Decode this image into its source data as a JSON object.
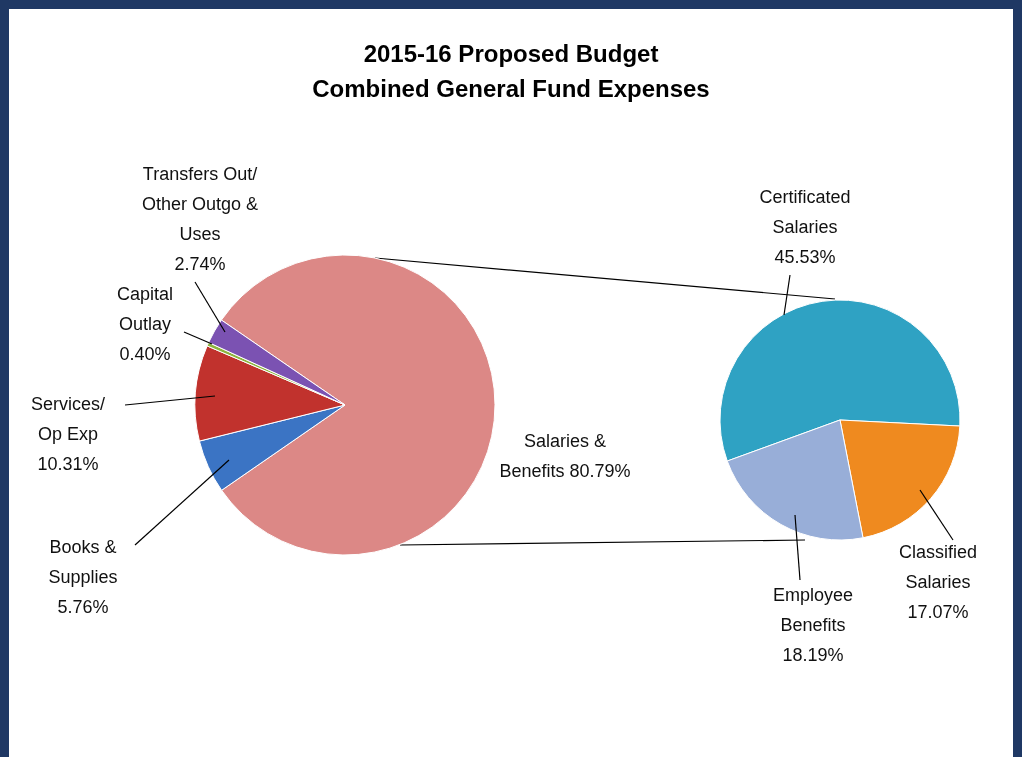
{
  "chart_data": [
    {
      "type": "pie",
      "title": "2015-16 Proposed Budget",
      "subtitle": "Combined General Fund Expenses",
      "categories": [
        "Salaries & Benefits",
        "Books & Supplies",
        "Services/ Op Exp",
        "Capital Outlay",
        "Transfers Out/ Other Outgo & Uses"
      ],
      "values": [
        80.79,
        5.76,
        10.31,
        0.4,
        2.74
      ],
      "colors": [
        "#dc8886",
        "#3b74c4",
        "#c1322d",
        "#8db43e",
        "#7b52b2"
      ],
      "value_labels": [
        "80.79%",
        "5.76%",
        "10.31%",
        "0.40%",
        "2.74%"
      ]
    },
    {
      "type": "pie",
      "categories": [
        "Certificated Salaries",
        "Classified Salaries",
        "Employee Benefits"
      ],
      "values": [
        45.53,
        17.07,
        18.19
      ],
      "colors": [
        "#2fa2c3",
        "#ef8a1f",
        "#98aed8"
      ],
      "value_labels": [
        "45.53%",
        "17.07%",
        "18.19%"
      ]
    }
  ]
}
